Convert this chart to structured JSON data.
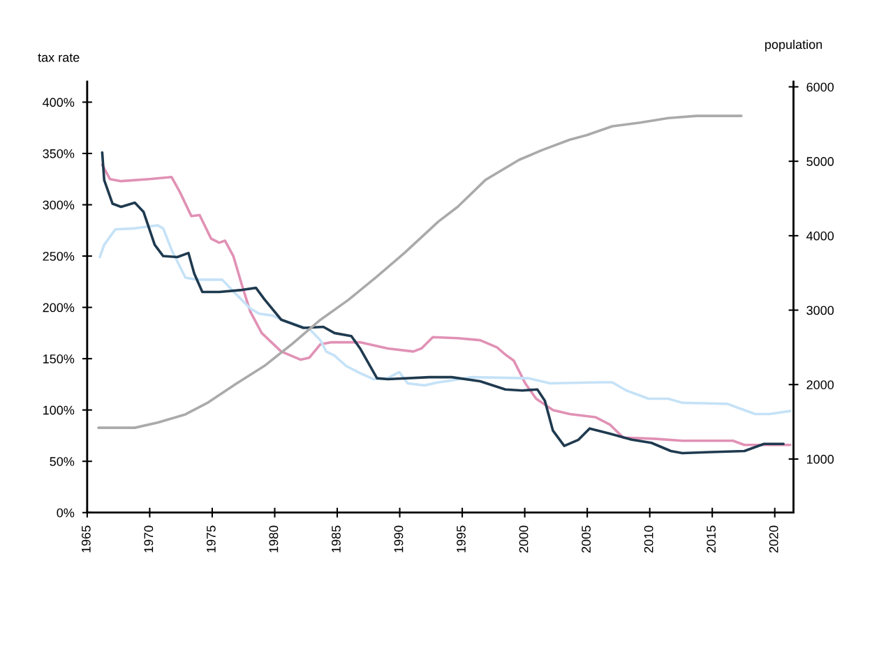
{
  "chart_data": {
    "type": "line",
    "ylabel": "tax rate",
    "y2label": "population",
    "xlim": [
      1965,
      2021.5
    ],
    "xticks": [
      1965,
      1970,
      1975,
      1980,
      1985,
      1990,
      1995,
      2000,
      2005,
      2010,
      2015,
      2020
    ],
    "ylim": [
      0,
      420
    ],
    "yticks": [
      {
        "value": 0,
        "label": "0%"
      },
      {
        "value": 50,
        "label": "50%"
      },
      {
        "value": 100,
        "label": "100%"
      },
      {
        "value": 150,
        "label": "150%"
      },
      {
        "value": 200,
        "label": "200%"
      },
      {
        "value": 250,
        "label": "250%"
      },
      {
        "value": 300,
        "label": "300%"
      },
      {
        "value": 350,
        "label": "350%"
      },
      {
        "value": 400,
        "label": "400%"
      }
    ],
    "y2lim": [
      280,
      6070
    ],
    "y2ticks": [
      1000,
      2000,
      3000,
      4000,
      5000,
      6000
    ],
    "grid": false,
    "marker": "none",
    "line_style": "solid",
    "series": [
      {
        "color": "#aaaaaa",
        "axis": "y2",
        "x": [
          1965.9,
          1968.81,
          1970.63,
          1972.86,
          1974.68,
          1976.9,
          1979.17,
          1981.42,
          1983.65,
          1985.91,
          1988.16,
          1990.39,
          1993.09,
          1994.65,
          1996.86,
          1999.56,
          2001.39,
          2003.6,
          2004.95,
          2007.0,
          2009.24,
          2011.48,
          2013.74,
          2017.33
        ],
        "values": [
          1420,
          1420,
          1490,
          1600,
          1760,
          2010,
          2250,
          2550,
          2870,
          3140,
          3450,
          3770,
          4190,
          4390,
          4750,
          5020,
          5150,
          5290,
          5350,
          5470,
          5520,
          5580,
          5610,
          5610
        ]
      },
      {
        "color": "#e191b5",
        "x": [
          1966.2,
          1966.82,
          1967.71,
          1969.95,
          1971.75,
          1972.43,
          1973.33,
          1973.99,
          1974.91,
          1975.56,
          1976.02,
          1976.69,
          1977.37,
          1978.04,
          1978.96,
          1980.52,
          1982.08,
          1982.77,
          1983.65,
          1984.56,
          1986.81,
          1989.04,
          1991.09,
          1991.74,
          1992.65,
          1994.65,
          1996.43,
          1997.78,
          1998.45,
          1999.13,
          2000.04,
          2000.91,
          2002.25,
          2003.6,
          2005.65,
          2006.79,
          2007.89,
          2010.35,
          2012.61,
          2016.66,
          2017.57,
          2019.35,
          2021.24
        ],
        "values": [
          339,
          325,
          323,
          325,
          327,
          312,
          289,
          290,
          267,
          263,
          265,
          250,
          222,
          196,
          175,
          157,
          149,
          151,
          164,
          166,
          166,
          160,
          157,
          160,
          171,
          170,
          168,
          161,
          154,
          148,
          126,
          111,
          100,
          96,
          93,
          86,
          73,
          72,
          70,
          70,
          66,
          66,
          66
        ]
      },
      {
        "color": "#c5e2f7",
        "x": [
          1966.01,
          1966.36,
          1967.25,
          1968.81,
          1970.63,
          1971.08,
          1971.75,
          1972.86,
          1973.78,
          1975.8,
          1976.9,
          1978.04,
          1978.72,
          1979.84,
          1980.52,
          1982.77,
          1983.65,
          1984.12,
          1984.78,
          1985.7,
          1986.81,
          1987.93,
          1989.04,
          1989.96,
          1990.63,
          1991.98,
          1993.09,
          1993.73,
          1995.76,
          2000.26,
          2002.04,
          2005.87,
          2007.0,
          2008.13,
          2009.91,
          2011.48,
          2012.61,
          2016.22,
          2017.09,
          2018.44,
          2019.57,
          2021.24
        ],
        "values": [
          249,
          261,
          276,
          277,
          280,
          277,
          256,
          229,
          227,
          227,
          213,
          199,
          194,
          192,
          188,
          179,
          168,
          157,
          153,
          143,
          136,
          130,
          131,
          137,
          126,
          124,
          127,
          128,
          132,
          131,
          126,
          127,
          127,
          119,
          111,
          111,
          107,
          106,
          102,
          96,
          96,
          99
        ]
      },
      {
        "color": "#1f3a4f",
        "x": [
          1966.2,
          1966.36,
          1967.03,
          1967.71,
          1968.81,
          1969.51,
          1970.4,
          1971.08,
          1972.21,
          1973.1,
          1973.56,
          1974.21,
          1975.56,
          1977.39,
          1978.5,
          1979.17,
          1980.52,
          1982.3,
          1983.89,
          1984.78,
          1986.13,
          1986.83,
          1988.18,
          1989.04,
          1992.38,
          1994.16,
          1996.43,
          1998.45,
          1999.8,
          2001.01,
          2001.61,
          2002.25,
          2003.16,
          2004.3,
          2005.19,
          2006.79,
          2008.57,
          2010.13,
          2011.69,
          2012.61,
          2014.88,
          2017.57,
          2019.14,
          2020.7
        ],
        "values": [
          351,
          324,
          301,
          298,
          302,
          293,
          261,
          250,
          249,
          253,
          233,
          215,
          215,
          217,
          219,
          208,
          188,
          180,
          181,
          175,
          172,
          160,
          131,
          130,
          132,
          132,
          128,
          120,
          119,
          120,
          109,
          80,
          65,
          71,
          82,
          77,
          71,
          68,
          60,
          58,
          59,
          60,
          67,
          67
        ]
      }
    ]
  }
}
